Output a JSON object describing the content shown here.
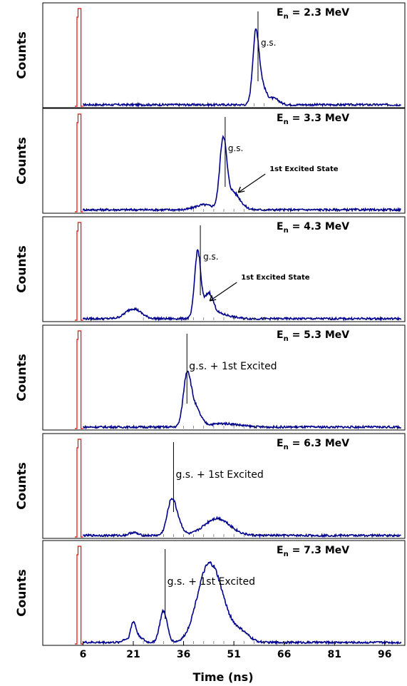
{
  "chart_data": {
    "type": "line",
    "x_unit": "ns",
    "xlabel": "Time (ns)",
    "x_ticks": [
      6,
      21,
      36,
      51,
      66,
      81,
      96
    ],
    "xlim": [
      -6,
      102
    ],
    "ylabel": "Counts",
    "reference_peak": {
      "color": "#ff0000",
      "center_ns": 4.8,
      "width_ns": 1.2
    },
    "spectrum_color": "#00008b",
    "panels": [
      {
        "ylabel": "Counts",
        "energy_main": "E",
        "energy_sub": "n",
        "energy_value": " = 2.3 MeV",
        "annotations": [
          {
            "text": "g.s.",
            "marker_ns": 58.2
          }
        ],
        "peaks": [
          {
            "center": 57.5,
            "sigma": 0.9,
            "amp": 0.62
          },
          {
            "center": 59.0,
            "sigma": 1.4,
            "amp": 0.22
          },
          {
            "center": 63.0,
            "sigma": 1.5,
            "amp": 0.06
          }
        ],
        "baseline": 0.015
      },
      {
        "ylabel": "Counts",
        "energy_main": "E",
        "energy_sub": "n",
        "energy_value": " = 3.3 MeV",
        "annotations": [
          {
            "text": "g.s.",
            "marker_ns": 48.4
          },
          {
            "text": "1st Excited State",
            "arrow_to_ns": 52.3
          }
        ],
        "peaks": [
          {
            "center": 47.8,
            "sigma": 1.0,
            "amp": 0.65
          },
          {
            "center": 50.5,
            "sigma": 2.2,
            "amp": 0.18
          },
          {
            "center": 42.0,
            "sigma": 2.5,
            "amp": 0.05
          }
        ],
        "baseline": 0.02
      },
      {
        "ylabel": "Counts",
        "energy_main": "E",
        "energy_sub": "n",
        "energy_value": " = 4.3 MeV",
        "annotations": [
          {
            "text": "g.s.",
            "marker_ns": 41.0
          },
          {
            "text": "1st Excited State",
            "arrow_to_ns": 43.8
          }
        ],
        "peaks": [
          {
            "center": 40.2,
            "sigma": 0.9,
            "amp": 0.66
          },
          {
            "center": 43.5,
            "sigma": 1.3,
            "amp": 0.22
          },
          {
            "center": 46.0,
            "sigma": 3.5,
            "amp": 0.05
          },
          {
            "center": 21.0,
            "sigma": 2.3,
            "amp": 0.1
          }
        ],
        "baseline": 0.015
      },
      {
        "ylabel": "Counts",
        "energy_main": "E",
        "energy_sub": "n",
        "energy_value": " = 5.3 MeV",
        "annotations": [
          {
            "text": "g.s. + 1st Excited",
            "marker_ns": 37.0
          }
        ],
        "peaks": [
          {
            "center": 37.0,
            "sigma": 1.1,
            "amp": 0.47
          },
          {
            "center": 39.2,
            "sigma": 1.7,
            "amp": 0.2
          },
          {
            "center": 48.0,
            "sigma": 4.5,
            "amp": 0.035
          }
        ],
        "baseline": 0.015
      },
      {
        "ylabel": "Counts",
        "energy_main": "E",
        "energy_sub": "n",
        "energy_value": " = 6.3 MeV",
        "annotations": [
          {
            "text": "g.s. + 1st Excited",
            "marker_ns": 33.0
          }
        ],
        "peaks": [
          {
            "center": 32.4,
            "sigma": 1.3,
            "amp": 0.34
          },
          {
            "center": 34.5,
            "sigma": 1.3,
            "amp": 0.1
          },
          {
            "center": 46.0,
            "sigma": 3.8,
            "amp": 0.17
          },
          {
            "center": 21.0,
            "sigma": 1.2,
            "amp": 0.03
          }
        ],
        "baseline": 0.015
      },
      {
        "ylabel": "Counts",
        "energy_main": "E",
        "energy_sub": "n",
        "energy_value": " = 7.3 MeV",
        "annotations": [
          {
            "text": "g.s. + 1st Excited",
            "marker_ns": 30.5
          }
        ],
        "peaks": [
          {
            "center": 30.0,
            "sigma": 1.1,
            "amp": 0.31
          },
          {
            "center": 21.0,
            "sigma": 0.8,
            "amp": 0.2
          },
          {
            "center": 23.0,
            "sigma": 1.0,
            "amp": 0.05
          },
          {
            "center": 18.5,
            "sigma": 0.8,
            "amp": 0.03
          },
          {
            "center": 44.5,
            "sigma": 3.5,
            "amp": 0.72
          },
          {
            "center": 41.0,
            "sigma": 2.5,
            "amp": 0.15
          },
          {
            "center": 53.0,
            "sigma": 2.5,
            "amp": 0.1
          }
        ],
        "baseline": 0.015
      }
    ]
  }
}
